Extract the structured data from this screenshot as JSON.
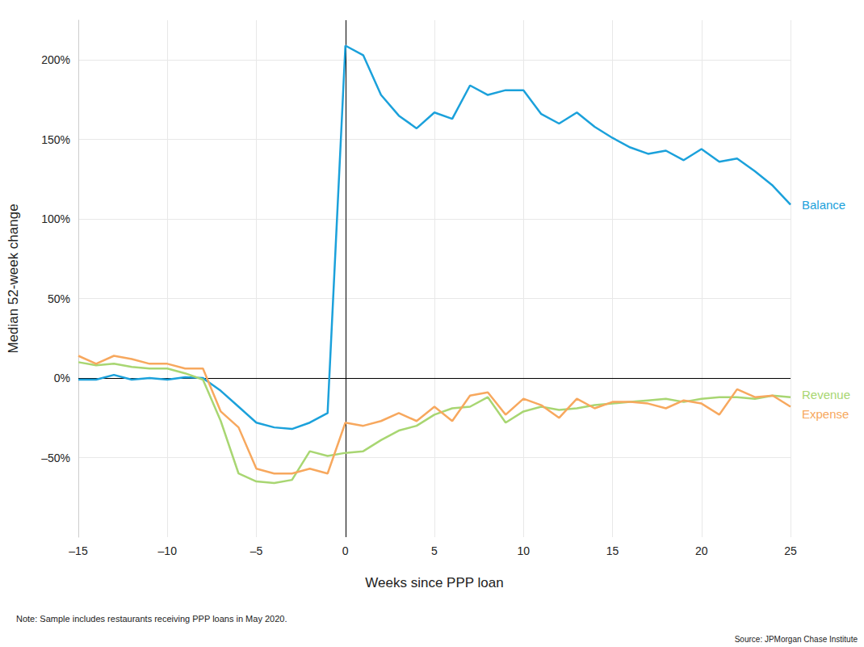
{
  "chart_data": {
    "type": "line",
    "x_label": "Weeks since PPP loan",
    "y_label": "Median 52-week change",
    "note": "Note: Sample includes restaurants receiving PPP loans in May 2020.",
    "source": "Source: JPMorgan Chase Institute",
    "x": [
      -15,
      -14,
      -13,
      -12,
      -11,
      -10,
      -9,
      -8,
      -7,
      -6,
      -5,
      -4,
      -3,
      -2,
      -1,
      0,
      1,
      2,
      3,
      4,
      5,
      6,
      7,
      8,
      9,
      10,
      11,
      12,
      13,
      14,
      15,
      16,
      17,
      18,
      19,
      20,
      21,
      22,
      23,
      24,
      25
    ],
    "series": [
      {
        "name": "Balance",
        "color": "#1ba1db",
        "values": [
          -1,
          -1,
          2,
          -1,
          0,
          -1,
          0.5,
          0,
          -8,
          -18,
          -28,
          -31,
          -32,
          -28,
          -22,
          209,
          203,
          178,
          165,
          157,
          167,
          163,
          184,
          178,
          181,
          181,
          166,
          160,
          167,
          158,
          151,
          145,
          141,
          143,
          137,
          144,
          136,
          138,
          130,
          121,
          109
        ]
      },
      {
        "name": "Revenue",
        "color": "#a8d672",
        "values": [
          10,
          8,
          9,
          7,
          6,
          6,
          3,
          -1,
          -27,
          -60,
          -65,
          -66,
          -64,
          -46,
          -49,
          -47,
          -46,
          -39,
          -33,
          -30,
          -23,
          -19,
          -18,
          -12,
          -28,
          -21,
          -18,
          -20,
          -19,
          -17,
          -16,
          -15,
          -14,
          -13,
          -15,
          -13,
          -12,
          -12,
          -13,
          -11,
          -12
        ]
      },
      {
        "name": "Expense",
        "color": "#f7a85e",
        "values": [
          14,
          9,
          14,
          12,
          9,
          9,
          6,
          6,
          -21,
          -31,
          -57,
          -60,
          -60,
          -57,
          -60,
          -28,
          -30,
          -27,
          -22,
          -27,
          -18,
          -27,
          -11,
          -9,
          -23,
          -13,
          -17,
          -25,
          -13,
          -19,
          -15,
          -15,
          -16,
          -19,
          -14,
          -16,
          -23,
          -7,
          -12,
          -11,
          -18
        ]
      }
    ],
    "xlim": [
      -15,
      25
    ],
    "xticks": [
      {
        "value": -15,
        "label": "–15"
      },
      {
        "value": -10,
        "label": "–10"
      },
      {
        "value": -5,
        "label": "–5"
      },
      0,
      5,
      10,
      15,
      20,
      25
    ],
    "ylim": [
      -100,
      225
    ],
    "yticks": [
      {
        "value": -50,
        "label": "–50%"
      },
      {
        "value": 0,
        "label": "0%"
      },
      {
        "value": 50,
        "label": "50%"
      },
      {
        "value": 100,
        "label": "100%"
      },
      {
        "value": 150,
        "label": "150%"
      },
      {
        "value": 200,
        "label": "200%"
      }
    ],
    "grid": true
  }
}
